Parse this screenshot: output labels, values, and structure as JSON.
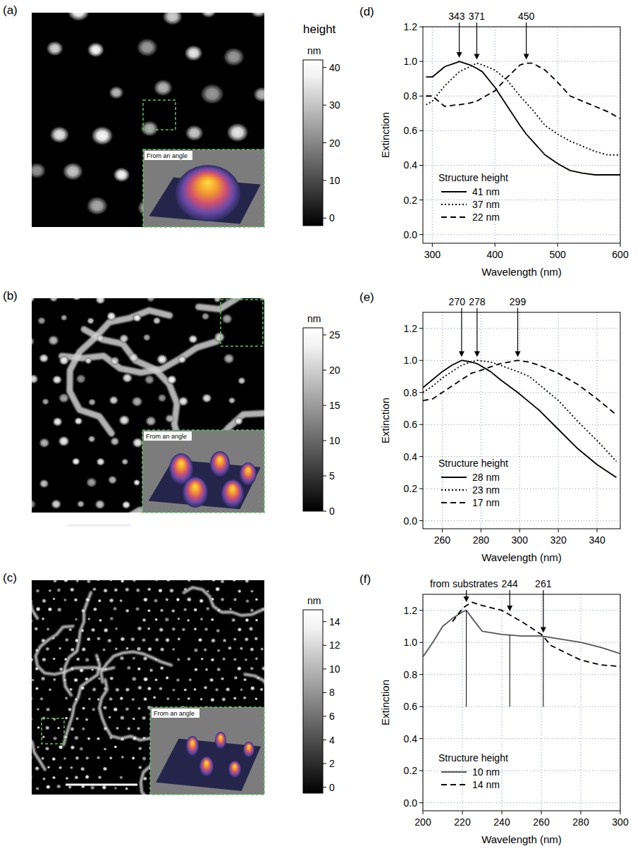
{
  "chart_data": [
    {
      "type": "image",
      "title": "(a)",
      "colorbar_title": "height",
      "colorbar_unit": "nm",
      "colorbar_range": [
        -2,
        42
      ],
      "colorbar_ticks": [
        0,
        10,
        20,
        30,
        40
      ],
      "inset_label": "From an angle"
    },
    {
      "type": "line",
      "title": "(d)",
      "x_label": "Wavelength (nm)",
      "y_label": "Extinction",
      "x": [
        290,
        300,
        320,
        340,
        343,
        360,
        371,
        380,
        400,
        420,
        440,
        450,
        460,
        480,
        500,
        520,
        540,
        560,
        580,
        600
      ],
      "series": [
        {
          "name": "41 nm",
          "color": "#000000",
          "line_style": "solid",
          "values": [
            0.91,
            0.91,
            0.97,
            0.995,
            1.0,
            0.98,
            0.96,
            0.94,
            0.85,
            0.74,
            0.63,
            0.58,
            0.54,
            0.46,
            0.41,
            0.37,
            0.355,
            0.345,
            0.345,
            0.345
          ]
        },
        {
          "name": "37 nm",
          "color": "#000000",
          "line_style": "dotted",
          "values": [
            0.75,
            0.77,
            0.86,
            0.93,
            0.94,
            0.97,
            0.99,
            0.98,
            0.95,
            0.89,
            0.8,
            0.76,
            0.72,
            0.63,
            0.58,
            0.54,
            0.51,
            0.48,
            0.46,
            0.46
          ]
        },
        {
          "name": "22 nm",
          "color": "#000000",
          "line_style": "dashed",
          "values": [
            0.8,
            0.8,
            0.74,
            0.75,
            0.75,
            0.76,
            0.77,
            0.79,
            0.83,
            0.91,
            0.98,
            0.99,
            0.99,
            0.95,
            0.88,
            0.8,
            0.77,
            0.74,
            0.71,
            0.67
          ]
        }
      ],
      "xlim": [
        285,
        600
      ],
      "xticks": [
        300,
        400,
        500,
        600
      ],
      "ylim": [
        -0.05,
        1.2
      ],
      "yticks": [
        {
          "value": 0,
          "label": "0.0"
        },
        0.2,
        0.4,
        0.6,
        0.8,
        {
          "value": 1,
          "label": "1.0"
        },
        1.2
      ],
      "grid": true,
      "legend": "lower left",
      "legend_title": "Structure height",
      "annotations": [
        {
          "value": 343,
          "label": "343"
        },
        {
          "value": 371,
          "label": "371"
        },
        {
          "value": 450,
          "label": "450"
        }
      ]
    },
    {
      "type": "image",
      "title": "(b)",
      "colorbar_unit": "nm",
      "colorbar_range": [
        0,
        26
      ],
      "colorbar_ticks": [
        0,
        5,
        10,
        15,
        20,
        25
      ],
      "inset_label": "From an angle"
    },
    {
      "type": "line",
      "title": "(e)",
      "x_label": "Wavelength (nm)",
      "y_label": "Extinction",
      "x": [
        250,
        255,
        260,
        265,
        270,
        275,
        278,
        285,
        290,
        299,
        305,
        310,
        320,
        330,
        340,
        350
      ],
      "series": [
        {
          "name": "28 nm",
          "color": "#000000",
          "line_style": "solid",
          "values": [
            0.83,
            0.88,
            0.93,
            0.97,
            1.0,
            0.99,
            0.98,
            0.93,
            0.88,
            0.8,
            0.74,
            0.69,
            0.57,
            0.45,
            0.35,
            0.27
          ]
        },
        {
          "name": "23 nm",
          "color": "#000000",
          "line_style": "dotted",
          "values": [
            0.8,
            0.84,
            0.89,
            0.93,
            0.97,
            0.99,
            1.0,
            0.99,
            0.97,
            0.93,
            0.9,
            0.85,
            0.75,
            0.62,
            0.5,
            0.37
          ]
        },
        {
          "name": "17 nm",
          "color": "#000000",
          "line_style": "dashed",
          "values": [
            0.75,
            0.76,
            0.8,
            0.84,
            0.88,
            0.92,
            0.93,
            0.96,
            0.98,
            1.0,
            0.99,
            0.97,
            0.92,
            0.85,
            0.76,
            0.66
          ]
        }
      ],
      "xlim": [
        250,
        352
      ],
      "xticks": [
        260,
        280,
        300,
        320,
        340
      ],
      "ylim": [
        -0.05,
        1.3
      ],
      "yticks": [
        {
          "value": 0,
          "label": "0.0"
        },
        0.2,
        0.4,
        0.6,
        0.8,
        {
          "value": 1,
          "label": "1.0"
        },
        1.2
      ],
      "grid": true,
      "legend": "lower left",
      "legend_title": "Structure height",
      "annotations": [
        {
          "value": 270,
          "label": "270"
        },
        {
          "value": 278,
          "label": "278"
        },
        {
          "value": 299,
          "label": "299"
        }
      ]
    },
    {
      "type": "image",
      "title": "(c)",
      "colorbar_unit": "nm",
      "colorbar_range": [
        -0.5,
        15
      ],
      "colorbar_ticks": [
        0,
        2,
        4,
        6,
        8,
        10,
        12,
        14
      ],
      "inset_label": "From an angle"
    },
    {
      "type": "line",
      "title": "(f)",
      "x_label": "Wavelength (nm)",
      "y_label": "Extinction",
      "x": [
        200,
        205,
        210,
        215,
        220,
        222,
        225,
        230,
        240,
        250,
        260,
        265,
        270,
        280,
        290,
        300
      ],
      "series": [
        {
          "name": "10 nm",
          "color": "#555555",
          "line_style": "solid",
          "values": [
            0.91,
            1.0,
            1.1,
            1.15,
            1.19,
            1.2,
            1.15,
            1.07,
            1.05,
            1.04,
            1.04,
            1.03,
            1.02,
            1.0,
            0.97,
            0.93
          ]
        },
        {
          "name": "14 nm",
          "color": "#000000",
          "line_style": "dashed",
          "values": [
            null,
            null,
            null,
            1.13,
            1.21,
            1.23,
            1.25,
            1.23,
            1.2,
            1.13,
            1.05,
            0.98,
            0.95,
            0.89,
            0.86,
            0.85
          ]
        }
      ],
      "xlim": [
        200,
        300
      ],
      "xticks": [
        200,
        220,
        240,
        260,
        280,
        300
      ],
      "ylim": [
        -0.05,
        1.3
      ],
      "yticks": [
        {
          "value": 0,
          "label": "0.0"
        },
        0.2,
        0.4,
        0.6,
        0.8,
        {
          "value": 1,
          "label": "1.0"
        },
        1.2
      ],
      "grid": true,
      "legend": "lower left",
      "legend_title": "Structure height",
      "annotations": [
        {
          "value": 222,
          "label": "from substrates"
        },
        {
          "value": 244,
          "label": "244"
        },
        {
          "value": 261,
          "label": "261"
        }
      ]
    }
  ]
}
